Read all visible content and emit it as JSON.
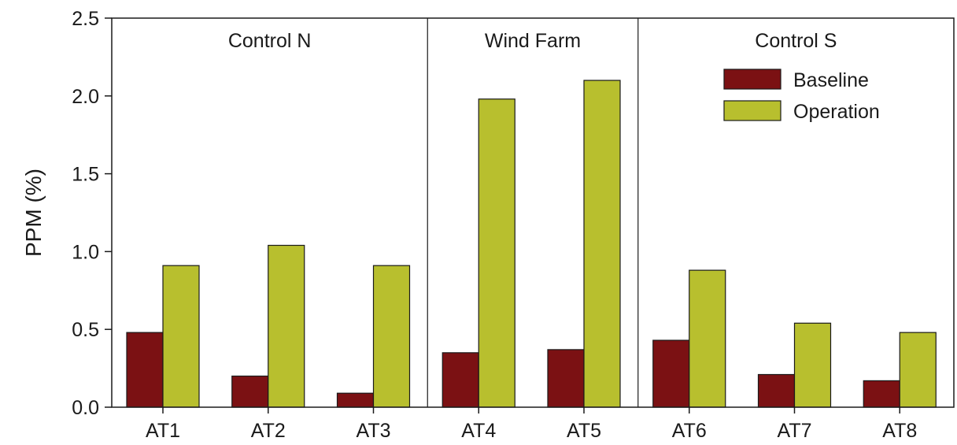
{
  "chart_data": {
    "type": "bar",
    "categories": [
      "AT1",
      "AT2",
      "AT3",
      "AT4",
      "AT5",
      "AT6",
      "AT7",
      "AT8"
    ],
    "series": [
      {
        "name": "Baseline",
        "color": "#7b1113",
        "values": [
          0.48,
          0.2,
          0.09,
          0.35,
          0.37,
          0.43,
          0.21,
          0.17
        ]
      },
      {
        "name": "Operation",
        "color": "#b8bf2e",
        "values": [
          0.91,
          1.04,
          0.91,
          1.98,
          2.1,
          0.88,
          0.54,
          0.48
        ]
      }
    ],
    "groups": [
      {
        "label": "Control N",
        "categories": [
          "AT1",
          "AT2",
          "AT3"
        ]
      },
      {
        "label": "Wind Farm",
        "categories": [
          "AT4",
          "AT5"
        ]
      },
      {
        "label": "Control S",
        "categories": [
          "AT6",
          "AT7",
          "AT8"
        ]
      }
    ],
    "yticks": [
      "0.0",
      "0.5",
      "1.0",
      "1.5",
      "2.0",
      "2.5"
    ],
    "ylim": [
      0,
      2.5
    ],
    "xlabel": "",
    "ylabel": "PPM (%)",
    "legend": {
      "position": "top-right",
      "entries": [
        "Baseline",
        "Operation"
      ]
    },
    "grid": false
  }
}
